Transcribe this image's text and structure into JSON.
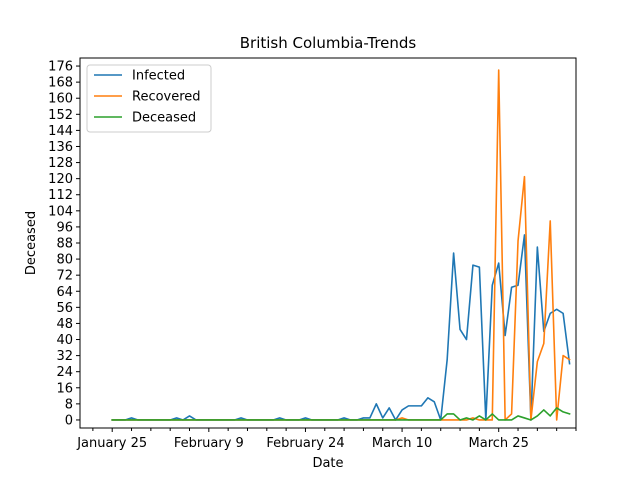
{
  "chart_data": {
    "type": "line",
    "title": "British Columbia-Trends",
    "xlabel": "Date",
    "ylabel": "Deceased",
    "x_tick_labels": [
      "January 25",
      "February 9",
      "February 24",
      "March 10",
      "March 25"
    ],
    "x_range_days": [
      -5,
      72
    ],
    "ylim": [
      -4,
      180
    ],
    "y_ticks": [
      0,
      8,
      16,
      24,
      32,
      40,
      48,
      56,
      64,
      72,
      80,
      88,
      96,
      104,
      112,
      120,
      128,
      136,
      144,
      152,
      160,
      168,
      176
    ],
    "grid": false,
    "legend_position": "top-left",
    "series": [
      {
        "name": "Infected",
        "color": "#1f77b4",
        "points": [
          [
            0,
            0
          ],
          [
            1,
            0
          ],
          [
            2,
            0
          ],
          [
            3,
            1
          ],
          [
            4,
            0
          ],
          [
            5,
            0
          ],
          [
            6,
            0
          ],
          [
            7,
            0
          ],
          [
            8,
            0
          ],
          [
            9,
            0
          ],
          [
            10,
            1
          ],
          [
            11,
            0
          ],
          [
            12,
            2
          ],
          [
            13,
            0
          ],
          [
            14,
            0
          ],
          [
            15,
            0
          ],
          [
            16,
            0
          ],
          [
            17,
            0
          ],
          [
            18,
            0
          ],
          [
            19,
            0
          ],
          [
            20,
            1
          ],
          [
            21,
            0
          ],
          [
            22,
            0
          ],
          [
            23,
            0
          ],
          [
            24,
            0
          ],
          [
            25,
            0
          ],
          [
            26,
            1
          ],
          [
            27,
            0
          ],
          [
            28,
            0
          ],
          [
            29,
            0
          ],
          [
            30,
            1
          ],
          [
            31,
            0
          ],
          [
            32,
            0
          ],
          [
            33,
            0
          ],
          [
            34,
            0
          ],
          [
            35,
            0
          ],
          [
            36,
            1
          ],
          [
            37,
            0
          ],
          [
            38,
            0
          ],
          [
            39,
            1
          ],
          [
            40,
            1
          ],
          [
            41,
            8
          ],
          [
            42,
            1
          ],
          [
            43,
            6
          ],
          [
            44,
            0
          ],
          [
            45,
            5
          ],
          [
            46,
            7
          ],
          [
            47,
            7
          ],
          [
            48,
            7
          ],
          [
            49,
            11
          ],
          [
            50,
            9
          ],
          [
            51,
            0
          ],
          [
            52,
            30
          ],
          [
            53,
            83
          ],
          [
            54,
            45
          ],
          [
            55,
            40
          ],
          [
            56,
            77
          ],
          [
            57,
            76
          ],
          [
            58,
            0
          ],
          [
            59,
            67
          ],
          [
            60,
            78
          ],
          [
            61,
            42
          ],
          [
            62,
            66
          ],
          [
            63,
            67
          ],
          [
            64,
            92
          ],
          [
            65,
            0
          ],
          [
            66,
            86
          ],
          [
            67,
            44
          ],
          [
            68,
            53
          ],
          [
            69,
            55
          ],
          [
            70,
            53
          ],
          [
            71,
            28
          ]
        ]
      },
      {
        "name": "Recovered",
        "color": "#ff7f0e",
        "points": [
          [
            0,
            0
          ],
          [
            1,
            0
          ],
          [
            2,
            0
          ],
          [
            3,
            0
          ],
          [
            4,
            0
          ],
          [
            5,
            0
          ],
          [
            6,
            0
          ],
          [
            7,
            0
          ],
          [
            8,
            0
          ],
          [
            9,
            0
          ],
          [
            10,
            0
          ],
          [
            11,
            0
          ],
          [
            12,
            0
          ],
          [
            13,
            0
          ],
          [
            14,
            0
          ],
          [
            15,
            0
          ],
          [
            16,
            0
          ],
          [
            17,
            0
          ],
          [
            18,
            0
          ],
          [
            19,
            0
          ],
          [
            20,
            0
          ],
          [
            21,
            0
          ],
          [
            22,
            0
          ],
          [
            23,
            0
          ],
          [
            24,
            0
          ],
          [
            25,
            0
          ],
          [
            26,
            0
          ],
          [
            27,
            0
          ],
          [
            28,
            0
          ],
          [
            29,
            0
          ],
          [
            30,
            0
          ],
          [
            31,
            0
          ],
          [
            32,
            0
          ],
          [
            33,
            0
          ],
          [
            34,
            0
          ],
          [
            35,
            0
          ],
          [
            36,
            0
          ],
          [
            37,
            0
          ],
          [
            38,
            0
          ],
          [
            39,
            0
          ],
          [
            40,
            0
          ],
          [
            41,
            0
          ],
          [
            42,
            0
          ],
          [
            43,
            0
          ],
          [
            44,
            0
          ],
          [
            45,
            1
          ],
          [
            46,
            0
          ],
          [
            47,
            0
          ],
          [
            48,
            0
          ],
          [
            49,
            0
          ],
          [
            50,
            0
          ],
          [
            51,
            0
          ],
          [
            52,
            0
          ],
          [
            53,
            0
          ],
          [
            54,
            0
          ],
          [
            55,
            0
          ],
          [
            56,
            1
          ],
          [
            57,
            0
          ],
          [
            58,
            0
          ],
          [
            59,
            0
          ],
          [
            60,
            174
          ],
          [
            61,
            0
          ],
          [
            62,
            3
          ],
          [
            63,
            89
          ],
          [
            64,
            121
          ],
          [
            65,
            0
          ],
          [
            66,
            29
          ],
          [
            67,
            38
          ],
          [
            68,
            99
          ],
          [
            69,
            0
          ],
          [
            70,
            32
          ],
          [
            71,
            30
          ]
        ]
      },
      {
        "name": "Deceased",
        "color": "#2ca02c",
        "points": [
          [
            0,
            0
          ],
          [
            1,
            0
          ],
          [
            2,
            0
          ],
          [
            3,
            0
          ],
          [
            4,
            0
          ],
          [
            5,
            0
          ],
          [
            6,
            0
          ],
          [
            7,
            0
          ],
          [
            8,
            0
          ],
          [
            9,
            0
          ],
          [
            10,
            0
          ],
          [
            11,
            0
          ],
          [
            12,
            0
          ],
          [
            13,
            0
          ],
          [
            14,
            0
          ],
          [
            15,
            0
          ],
          [
            16,
            0
          ],
          [
            17,
            0
          ],
          [
            18,
            0
          ],
          [
            19,
            0
          ],
          [
            20,
            0
          ],
          [
            21,
            0
          ],
          [
            22,
            0
          ],
          [
            23,
            0
          ],
          [
            24,
            0
          ],
          [
            25,
            0
          ],
          [
            26,
            0
          ],
          [
            27,
            0
          ],
          [
            28,
            0
          ],
          [
            29,
            0
          ],
          [
            30,
            0
          ],
          [
            31,
            0
          ],
          [
            32,
            0
          ],
          [
            33,
            0
          ],
          [
            34,
            0
          ],
          [
            35,
            0
          ],
          [
            36,
            0
          ],
          [
            37,
            0
          ],
          [
            38,
            0
          ],
          [
            39,
            0
          ],
          [
            40,
            0
          ],
          [
            41,
            0
          ],
          [
            42,
            0
          ],
          [
            43,
            0
          ],
          [
            44,
            0
          ],
          [
            45,
            0
          ],
          [
            46,
            0
          ],
          [
            47,
            0
          ],
          [
            48,
            0
          ],
          [
            49,
            0
          ],
          [
            50,
            0
          ],
          [
            51,
            0
          ],
          [
            52,
            3
          ],
          [
            53,
            3
          ],
          [
            54,
            0
          ],
          [
            55,
            1
          ],
          [
            56,
            0
          ],
          [
            57,
            2
          ],
          [
            58,
            0
          ],
          [
            59,
            3
          ],
          [
            60,
            0
          ],
          [
            61,
            0
          ],
          [
            62,
            0
          ],
          [
            63,
            2
          ],
          [
            64,
            1
          ],
          [
            65,
            0
          ],
          [
            66,
            2
          ],
          [
            67,
            5
          ],
          [
            68,
            2
          ],
          [
            69,
            6
          ],
          [
            70,
            4
          ],
          [
            71,
            3
          ]
        ]
      }
    ]
  }
}
